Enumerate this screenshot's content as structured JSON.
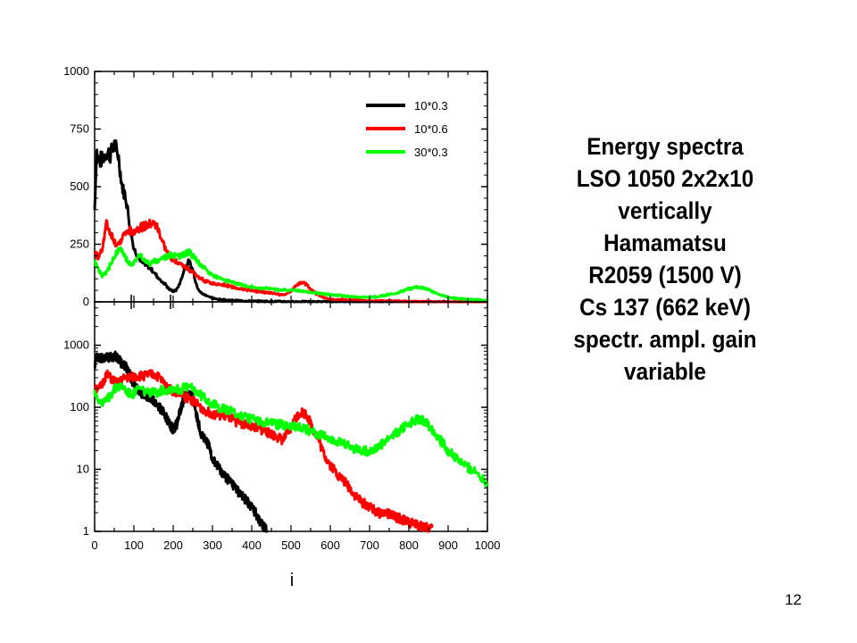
{
  "annotation": {
    "lines": [
      "Energy spectra",
      "LSO 1050 2x2x10",
      "vertically",
      "Hamamatsu",
      "R2059 (1500 V)",
      "Cs 137 (662 keV)",
      "spectr. ampl. gain",
      "variable"
    ]
  },
  "page_number": "12",
  "chart_data": [
    {
      "type": "line",
      "panel": "top-linear",
      "xlim": [
        0,
        1000
      ],
      "ylim": [
        0,
        1000
      ],
      "yticks": [
        0,
        250,
        500,
        750,
        1000
      ],
      "ytick_labels": [
        "0",
        "250",
        "500",
        "750",
        "1000"
      ],
      "legend_position": "top-right",
      "series": [
        {
          "name": "10*0.3",
          "color": "#000000",
          "x": [
            0,
            5,
            10,
            20,
            30,
            40,
            50,
            60,
            70,
            80,
            90,
            100,
            110,
            120,
            130,
            140,
            150,
            160,
            170,
            180,
            190,
            200,
            210,
            220,
            230,
            240,
            250,
            260,
            270,
            280,
            290,
            300,
            320,
            350,
            400,
            450,
            500,
            600,
            700,
            800,
            900,
            1000
          ],
          "y": [
            400,
            660,
            610,
            620,
            650,
            640,
            680,
            640,
            500,
            450,
            330,
            230,
            200,
            170,
            160,
            150,
            130,
            110,
            90,
            75,
            55,
            45,
            55,
            95,
            150,
            175,
            140,
            70,
            40,
            30,
            25,
            15,
            10,
            6,
            3,
            2,
            1,
            0,
            0,
            0,
            0,
            0
          ]
        },
        {
          "name": "10*0.6",
          "color": "#ff0000",
          "x": [
            0,
            5,
            10,
            20,
            30,
            40,
            50,
            60,
            70,
            80,
            90,
            100,
            110,
            120,
            130,
            140,
            150,
            160,
            170,
            180,
            190,
            200,
            210,
            220,
            230,
            240,
            250,
            260,
            270,
            280,
            290,
            300,
            320,
            340,
            360,
            380,
            400,
            420,
            440,
            460,
            480,
            500,
            510,
            520,
            530,
            540,
            550,
            560,
            570,
            580,
            600,
            650,
            700,
            750,
            800,
            850,
            900,
            1000
          ],
          "y": [
            220,
            205,
            190,
            240,
            340,
            300,
            265,
            240,
            280,
            300,
            305,
            310,
            320,
            325,
            330,
            335,
            340,
            320,
            275,
            230,
            200,
            185,
            175,
            165,
            150,
            140,
            130,
            115,
            100,
            90,
            85,
            80,
            75,
            70,
            60,
            55,
            50,
            45,
            40,
            35,
            30,
            45,
            65,
            80,
            85,
            75,
            55,
            40,
            30,
            20,
            12,
            8,
            4,
            3,
            2,
            1,
            0,
            0
          ]
        },
        {
          "name": "30*0.3",
          "color": "#00ff00",
          "x": [
            0,
            5,
            10,
            20,
            30,
            40,
            50,
            60,
            70,
            80,
            90,
            100,
            110,
            120,
            130,
            140,
            150,
            160,
            170,
            180,
            190,
            200,
            210,
            220,
            230,
            240,
            250,
            260,
            270,
            280,
            290,
            300,
            320,
            340,
            360,
            380,
            400,
            420,
            440,
            460,
            480,
            500,
            520,
            540,
            560,
            580,
            600,
            620,
            640,
            660,
            680,
            700,
            720,
            740,
            760,
            780,
            800,
            820,
            840,
            860,
            880,
            900,
            920,
            940,
            960,
            980,
            1000
          ],
          "y": [
            175,
            160,
            140,
            110,
            130,
            160,
            195,
            225,
            220,
            190,
            165,
            170,
            200,
            195,
            180,
            165,
            175,
            180,
            190,
            195,
            200,
            205,
            200,
            195,
            210,
            215,
            200,
            180,
            160,
            145,
            130,
            115,
            100,
            90,
            80,
            70,
            65,
            60,
            58,
            55,
            52,
            50,
            48,
            45,
            40,
            35,
            32,
            28,
            25,
            22,
            20,
            20,
            22,
            28,
            35,
            45,
            55,
            65,
            60,
            45,
            30,
            20,
            15,
            12,
            10,
            8,
            6
          ]
        }
      ]
    },
    {
      "type": "line",
      "panel": "bottom-log",
      "xlim": [
        0,
        1000
      ],
      "ylim": [
        1,
        5000
      ],
      "yscale": "log",
      "yticks": [
        1,
        10,
        100,
        1000
      ],
      "ytick_labels": [
        "1",
        "10",
        "100",
        "1000"
      ],
      "xticks": [
        0,
        100,
        200,
        300,
        400,
        500,
        600,
        700,
        800,
        900,
        1000
      ],
      "xtick_labels": [
        "0",
        "100",
        "200",
        "300",
        "400",
        "500",
        "600",
        "700",
        "800",
        "900",
        "1000"
      ],
      "xlabel": "i",
      "series": [
        {
          "name": "10*0.3",
          "color": "#000000",
          "x": [
            0,
            5,
            10,
            20,
            30,
            40,
            50,
            60,
            70,
            80,
            90,
            100,
            110,
            120,
            130,
            140,
            150,
            160,
            170,
            180,
            190,
            200,
            210,
            220,
            230,
            240,
            250,
            260,
            270,
            280,
            290,
            300,
            310,
            320,
            330,
            340,
            350,
            360,
            370,
            380,
            390,
            400,
            410,
            420,
            430,
            440
          ],
          "y": [
            400,
            660,
            610,
            620,
            650,
            640,
            680,
            640,
            500,
            450,
            330,
            230,
            200,
            170,
            160,
            150,
            130,
            110,
            90,
            75,
            55,
            45,
            55,
            95,
            150,
            175,
            140,
            70,
            40,
            30,
            25,
            15,
            12,
            10,
            8,
            7,
            6,
            5,
            4,
            3.5,
            3,
            2.5,
            2,
            1.5,
            1.2,
            1
          ]
        },
        {
          "name": "10*0.6",
          "color": "#ff0000",
          "x": [
            0,
            5,
            10,
            20,
            30,
            40,
            50,
            60,
            70,
            80,
            90,
            100,
            110,
            120,
            130,
            140,
            150,
            160,
            170,
            180,
            190,
            200,
            210,
            220,
            230,
            240,
            250,
            260,
            270,
            280,
            290,
            300,
            320,
            340,
            360,
            380,
            400,
            420,
            440,
            460,
            480,
            500,
            510,
            520,
            530,
            540,
            550,
            560,
            570,
            580,
            590,
            600,
            620,
            640,
            660,
            680,
            700,
            720,
            740,
            760,
            780,
            800,
            820,
            840,
            860
          ],
          "y": [
            220,
            205,
            190,
            240,
            340,
            300,
            265,
            240,
            280,
            300,
            305,
            310,
            320,
            325,
            330,
            335,
            340,
            320,
            275,
            230,
            200,
            185,
            175,
            165,
            150,
            140,
            130,
            115,
            100,
            90,
            85,
            80,
            75,
            70,
            60,
            55,
            50,
            45,
            40,
            35,
            30,
            45,
            65,
            80,
            85,
            75,
            55,
            40,
            30,
            20,
            15,
            12,
            8,
            6,
            4,
            3,
            2.5,
            2,
            2,
            1.8,
            1.6,
            1.4,
            1.3,
            1.2,
            1.1
          ]
        },
        {
          "name": "30*0.3",
          "color": "#00ff00",
          "x": [
            0,
            5,
            10,
            20,
            30,
            40,
            50,
            60,
            70,
            80,
            90,
            100,
            110,
            120,
            130,
            140,
            150,
            160,
            170,
            180,
            190,
            200,
            210,
            220,
            230,
            240,
            250,
            260,
            270,
            280,
            290,
            300,
            320,
            340,
            360,
            380,
            400,
            420,
            440,
            460,
            480,
            500,
            520,
            540,
            560,
            580,
            600,
            620,
            640,
            660,
            680,
            700,
            720,
            740,
            760,
            780,
            800,
            820,
            840,
            860,
            880,
            900,
            920,
            940,
            960,
            980,
            1000
          ],
          "y": [
            175,
            160,
            140,
            110,
            130,
            160,
            195,
            225,
            220,
            190,
            165,
            170,
            200,
            195,
            180,
            165,
            175,
            180,
            190,
            195,
            200,
            205,
            200,
            195,
            210,
            215,
            200,
            180,
            160,
            145,
            130,
            115,
            100,
            90,
            80,
            70,
            65,
            60,
            58,
            55,
            52,
            50,
            48,
            45,
            40,
            35,
            32,
            28,
            25,
            22,
            20,
            20,
            22,
            28,
            35,
            45,
            55,
            65,
            60,
            45,
            30,
            20,
            15,
            12,
            10,
            8,
            6
          ]
        }
      ]
    }
  ]
}
